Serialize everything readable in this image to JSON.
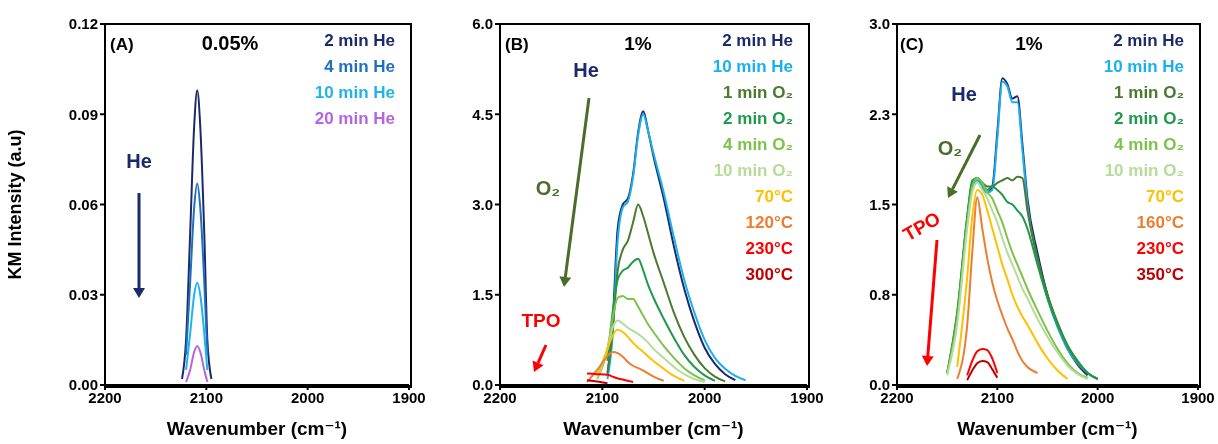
{
  "chart_data": [
    {
      "type": "line",
      "ylabel": "KM Intensity (a.u)",
      "xlabel": "Wavenumber (cm⁻¹)",
      "annotations": [
        "(A)",
        "0.05%",
        "He"
      ],
      "legend": "top right",
      "xlim": [
        2200,
        1900
      ],
      "xticks": [
        2200,
        2100,
        2000,
        1900
      ],
      "ylim": [
        0,
        0.12
      ],
      "yticks": [
        {
          "value": 0,
          "label": "0.00"
        },
        {
          "value": 0.03,
          "label": "0.03"
        },
        {
          "value": 0.06,
          "label": "0.06"
        },
        {
          "value": 0.09,
          "label": "0.09"
        },
        {
          "value": 0.12,
          "label": "0.12"
        }
      ],
      "x": [
        2124,
        2120,
        2116,
        2112,
        2109,
        2106,
        2102,
        2099,
        2095
      ],
      "series": [
        {
          "name": "2 min He",
          "color": "#1b2a6b",
          "values": [
            0.002,
            0.015,
            0.05,
            0.086,
            0.098,
            0.086,
            0.05,
            0.015,
            0.002
          ]
        },
        {
          "name": "4 min He",
          "color": "#1f6fc0",
          "values": [
            null,
            0.01,
            0.034,
            0.059,
            0.067,
            0.059,
            0.034,
            0.01,
            null
          ]
        },
        {
          "name": "10 min He",
          "color": "#20b4ea",
          "values": [
            null,
            0.005,
            0.017,
            0.03,
            0.034,
            0.03,
            0.017,
            0.005,
            null
          ]
        },
        {
          "name": "20 min He",
          "color": "#b565e0",
          "values": [
            null,
            0.001,
            0.005,
            0.011,
            0.013,
            0.011,
            0.005,
            0.001,
            null
          ]
        }
      ]
    },
    {
      "type": "line",
      "xlabel": "Wavenumber (cm⁻¹)",
      "annotations": [
        "(B)",
        "1%",
        "He",
        "O₂",
        "TPO"
      ],
      "legend": "top right",
      "xlim": [
        2200,
        1900
      ],
      "xticks": [
        2200,
        2100,
        2000,
        1900
      ],
      "ylim": [
        0,
        6
      ],
      "yticks": [
        {
          "value": 0,
          "label": "0.0"
        },
        {
          "value": 1.5,
          "label": "1.5"
        },
        {
          "value": 3,
          "label": "3.0"
        },
        {
          "value": 4.5,
          "label": "4.5"
        },
        {
          "value": 6,
          "label": "6.0"
        }
      ],
      "x": [
        2115,
        2105,
        2095,
        2090,
        2085,
        2080,
        2075,
        2070,
        2065,
        2060,
        2055,
        2050,
        2040,
        2030,
        2020,
        2010,
        2000,
        1990,
        1980,
        1970,
        1960
      ],
      "series": [
        {
          "name": "2 min He",
          "color": "#1b2a6b",
          "values": [
            null,
            null,
            0.15,
            1.0,
            2.6,
            3.0,
            3.1,
            3.5,
            4.2,
            4.55,
            4.2,
            3.8,
            3.1,
            2.3,
            1.6,
            1.05,
            0.62,
            0.35,
            0.18,
            0.08,
            null
          ]
        },
        {
          "name": "10 min He",
          "color": "#1ab0ec",
          "values": [
            null,
            null,
            0.1,
            0.8,
            2.4,
            2.95,
            3.05,
            3.45,
            4.15,
            4.5,
            4.2,
            3.85,
            3.2,
            2.45,
            1.75,
            1.2,
            0.75,
            0.45,
            0.27,
            0.15,
            0.08
          ]
        },
        {
          "name": "1 min O₂",
          "color": "#4a7a2e",
          "values": [
            null,
            null,
            0.2,
            0.9,
            1.9,
            2.25,
            2.4,
            2.7,
            3.0,
            2.8,
            2.5,
            2.2,
            1.7,
            1.2,
            0.8,
            0.5,
            0.28,
            0.14,
            0.06,
            null,
            null
          ]
        },
        {
          "name": "2 min O₂",
          "color": "#1e9a4a",
          "values": [
            null,
            null,
            0.4,
            1.2,
            1.75,
            1.9,
            1.95,
            2.05,
            2.1,
            1.9,
            1.65,
            1.45,
            1.1,
            0.78,
            0.5,
            0.3,
            0.16,
            0.07,
            null,
            null,
            null
          ]
        },
        {
          "name": "4 min O₂",
          "color": "#7dc34a",
          "values": [
            null,
            0.1,
            0.6,
            1.1,
            1.45,
            1.48,
            1.43,
            1.43,
            1.3,
            1.15,
            1.0,
            0.88,
            0.65,
            0.45,
            0.28,
            0.16,
            0.08,
            null,
            null,
            null,
            null
          ]
        },
        {
          "name": "10 min O₂",
          "color": "#b5dc9a",
          "values": [
            null,
            0.12,
            0.6,
            0.95,
            1.07,
            1.02,
            0.95,
            0.9,
            0.85,
            0.78,
            0.7,
            0.6,
            0.45,
            0.3,
            0.18,
            0.1,
            0.05,
            null,
            null,
            null,
            null
          ]
        },
        {
          "name": "70°C",
          "color": "#ffc000",
          "values": [
            null,
            0.15,
            0.6,
            0.82,
            0.92,
            0.88,
            0.8,
            0.7,
            0.62,
            0.55,
            0.47,
            0.4,
            0.27,
            0.15,
            0.07,
            null,
            null,
            null,
            null,
            null,
            null
          ]
        },
        {
          "name": "120°C",
          "color": "#ed7d31",
          "values": [
            0.05,
            0.25,
            0.48,
            0.55,
            0.53,
            0.47,
            0.38,
            0.32,
            0.28,
            0.24,
            0.19,
            0.14,
            0.07,
            null,
            null,
            null,
            null,
            null,
            null,
            null,
            null
          ]
        },
        {
          "name": "230°C",
          "color": "#ff0000",
          "values": [
            0.19,
            0.18,
            0.17,
            0.14,
            0.11,
            0.09,
            0.07,
            0.05,
            null,
            null,
            null,
            null,
            null,
            null,
            null,
            null,
            null,
            null,
            null,
            null,
            null
          ]
        },
        {
          "name": "300°C",
          "color": "#c00000",
          "values": [
            0.08,
            0.06,
            0.03,
            null,
            null,
            null,
            null,
            null,
            null,
            null,
            null,
            null,
            null,
            null,
            null,
            null,
            null,
            null,
            null,
            null,
            null
          ]
        }
      ]
    },
    {
      "type": "line",
      "xlabel": "Wavenumber (cm⁻¹)",
      "annotations": [
        "(C)",
        "1%",
        "He",
        "O₂",
        "TPO"
      ],
      "legend": "top right",
      "xlim": [
        2200,
        1900
      ],
      "xticks": [
        2200,
        2100,
        2000,
        1900
      ],
      "ylim": [
        0,
        3
      ],
      "yticks": [
        {
          "value": 0,
          "label": "0.0"
        },
        {
          "value": 0.75,
          "label": "0.8"
        },
        {
          "value": 1.5,
          "label": "1.5"
        },
        {
          "value": 2.25,
          "label": "2.3"
        },
        {
          "value": 3,
          "label": "3.0"
        }
      ],
      "x": [
        2150,
        2140,
        2130,
        2125,
        2120,
        2115,
        2110,
        2105,
        2100,
        2095,
        2090,
        2085,
        2080,
        2075,
        2070,
        2060,
        2050,
        2040,
        2030,
        2020,
        2010,
        2000
      ],
      "series": [
        {
          "name": "2 min He",
          "color": "#1b2a6b",
          "values": [
            null,
            null,
            null,
            null,
            null,
            1.65,
            1.6,
            1.65,
            2.1,
            2.55,
            2.5,
            2.38,
            2.4,
            2.0,
            1.55,
            1.1,
            0.75,
            0.5,
            0.3,
            0.17,
            0.08,
            null
          ]
        },
        {
          "name": "10 min He",
          "color": "#1ab0ec",
          "values": [
            null,
            null,
            1.35,
            1.65,
            1.7,
            1.65,
            1.6,
            1.62,
            2.05,
            2.52,
            2.48,
            2.35,
            2.35,
            1.95,
            1.5,
            1.05,
            0.72,
            0.48,
            0.3,
            0.18,
            0.1,
            0.05
          ]
        },
        {
          "name": "1 min O₂",
          "color": "#4a7a2e",
          "values": [
            0.1,
            0.6,
            1.4,
            1.68,
            1.72,
            1.68,
            1.65,
            1.65,
            1.68,
            1.7,
            1.72,
            1.7,
            1.73,
            1.72,
            1.45,
            1.05,
            0.75,
            0.52,
            0.33,
            0.2,
            0.1,
            0.05
          ]
        },
        {
          "name": "2 min O₂",
          "color": "#1e9a4a",
          "values": [
            0.1,
            0.6,
            1.4,
            1.7,
            1.72,
            1.68,
            1.62,
            1.65,
            1.62,
            1.58,
            1.52,
            1.5,
            1.45,
            1.4,
            1.3,
            1.0,
            0.72,
            0.5,
            0.32,
            0.19,
            0.1,
            0.05
          ]
        },
        {
          "name": "4 min O₂",
          "color": "#7dc34a",
          "values": [
            0.1,
            0.55,
            1.35,
            1.65,
            1.72,
            1.68,
            1.6,
            1.55,
            1.45,
            1.35,
            1.22,
            1.1,
            1.0,
            0.9,
            0.8,
            0.62,
            0.45,
            0.3,
            0.18,
            0.1,
            0.06,
            null
          ]
        },
        {
          "name": "10 min O₂",
          "color": "#b5dc9a",
          "values": [
            0.08,
            0.5,
            1.3,
            1.6,
            1.68,
            1.62,
            1.55,
            1.45,
            1.35,
            1.22,
            1.1,
            1.0,
            0.9,
            0.8,
            0.72,
            0.55,
            0.4,
            0.27,
            0.16,
            0.09,
            0.05,
            null
          ]
        },
        {
          "name": "70°C",
          "color": "#ffc000",
          "values": [
            null,
            0.15,
            0.9,
            1.4,
            1.62,
            1.58,
            1.45,
            1.3,
            1.15,
            1.0,
            0.88,
            0.75,
            0.65,
            0.57,
            0.5,
            0.35,
            0.22,
            0.12,
            0.05,
            null,
            null,
            null
          ]
        },
        {
          "name": "160°C",
          "color": "#ed7d31",
          "values": [
            null,
            0.05,
            0.5,
            1.1,
            1.56,
            1.3,
            1.05,
            0.85,
            0.7,
            0.58,
            0.47,
            0.38,
            0.28,
            0.2,
            0.15,
            0.1,
            null,
            null,
            null,
            null,
            null,
            null
          ]
        },
        {
          "name": "230°C",
          "color": "#ff0000",
          "values": [
            null,
            null,
            0.08,
            0.2,
            0.28,
            0.3,
            0.29,
            0.22,
            0.1,
            null,
            null,
            null,
            null,
            null,
            null,
            null,
            null,
            null,
            null,
            null,
            null,
            null
          ]
        },
        {
          "name": "350°C",
          "color": "#c00000",
          "values": [
            null,
            null,
            0.04,
            0.12,
            0.18,
            0.2,
            0.19,
            0.13,
            0.06,
            null,
            null,
            null,
            null,
            null,
            null,
            null,
            null,
            null,
            null,
            null,
            null,
            null
          ]
        }
      ]
    }
  ]
}
